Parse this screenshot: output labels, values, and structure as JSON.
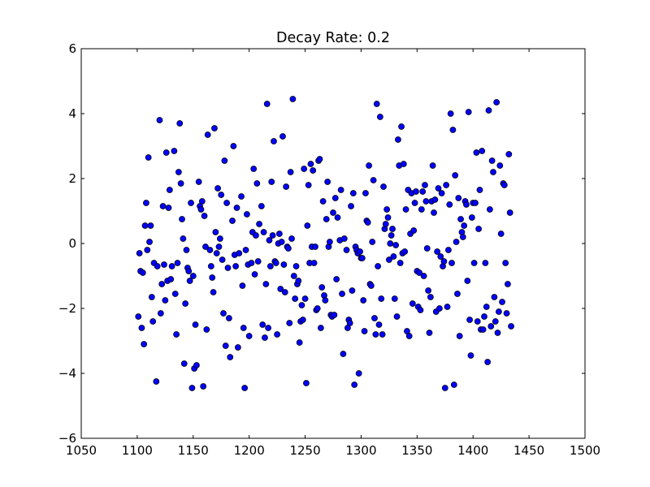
{
  "chart_data": {
    "type": "scatter",
    "title": "Decay Rate: 0.2",
    "xlabel": "",
    "ylabel": "",
    "xlim": [
      1050,
      1500
    ],
    "ylim": [
      -6,
      6
    ],
    "x_ticks": [
      1050,
      1100,
      1150,
      1200,
      1250,
      1300,
      1350,
      1400,
      1450,
      1500
    ],
    "x_tick_labels": [
      "1050",
      "1100",
      "1150",
      "1200",
      "1250",
      "1300",
      "1350",
      "1400",
      "1450",
      "1500"
    ],
    "y_ticks": [
      -6,
      -4,
      -2,
      0,
      2,
      4,
      6
    ],
    "y_tick_labels": [
      "−6",
      "−4",
      "−2",
      "0",
      "2",
      "4",
      "6"
    ],
    "grid": false,
    "marker_color": "#0000ff",
    "marker_edge_color": "#000000",
    "points": [
      [
        1101,
        -2.25
      ],
      [
        1102,
        -0.3
      ],
      [
        1103,
        -0.85
      ],
      [
        1104,
        -2.6
      ],
      [
        1105,
        -0.9
      ],
      [
        1106,
        -3.1
      ],
      [
        1107,
        0.55
      ],
      [
        1108,
        1.25
      ],
      [
        1109,
        -0.2
      ],
      [
        1110,
        2.65
      ],
      [
        1111,
        0.05
      ],
      [
        1112,
        0.55
      ],
      [
        1113,
        -1.65
      ],
      [
        1114,
        -2.4
      ],
      [
        1115,
        -0.6
      ],
      [
        1117,
        -4.25
      ],
      [
        1118,
        -0.7
      ],
      [
        1120,
        3.8
      ],
      [
        1121,
        -2.15
      ],
      [
        1122,
        -1.25
      ],
      [
        1123,
        1.15
      ],
      [
        1124,
        -0.65
      ],
      [
        1125,
        -1.75
      ],
      [
        1126,
        2.8
      ],
      [
        1127,
        -1.15
      ],
      [
        1128,
        1.1
      ],
      [
        1129,
        1.65
      ],
      [
        1130,
        -1.1
      ],
      [
        1131,
        -0.7
      ],
      [
        1133,
        2.85
      ],
      [
        1134,
        -1.55
      ],
      [
        1135,
        -2.8
      ],
      [
        1136,
        -0.6
      ],
      [
        1137,
        2.2
      ],
      [
        1138,
        3.7
      ],
      [
        1139,
        1.85
      ],
      [
        1140,
        0.75
      ],
      [
        1141,
        0.15
      ],
      [
        1142,
        -3.7
      ],
      [
        1143,
        -1.85
      ],
      [
        1144,
        -0.2
      ],
      [
        1145,
        -0.75
      ],
      [
        1146,
        -0.85
      ],
      [
        1147,
        -1.15
      ],
      [
        1148,
        1.25
      ],
      [
        1149,
        -4.45
      ],
      [
        1150,
        -1.0
      ],
      [
        1151,
        -3.85
      ],
      [
        1152,
        -2.5
      ],
      [
        1153,
        -3.75
      ],
      [
        1155,
        1.9
      ],
      [
        1156,
        1.15
      ],
      [
        1157,
        1.05
      ],
      [
        1158,
        1.3
      ],
      [
        1159,
        -4.4
      ],
      [
        1160,
        0.85
      ],
      [
        1161,
        -0.1
      ],
      [
        1162,
        -2.65
      ],
      [
        1163,
        3.35
      ],
      [
        1165,
        -0.2
      ],
      [
        1166,
        -0.7
      ],
      [
        1167,
        -1.05
      ],
      [
        1168,
        -1.5
      ],
      [
        1169,
        3.55
      ],
      [
        1170,
        0.35
      ],
      [
        1171,
        -0.3
      ],
      [
        1172,
        1.7
      ],
      [
        1173,
        -0.1
      ],
      [
        1174,
        0.15
      ],
      [
        1175,
        1.5
      ],
      [
        1176,
        -0.5
      ],
      [
        1177,
        -2.15
      ],
      [
        1178,
        2.55
      ],
      [
        1179,
        -3.15
      ],
      [
        1180,
        1.25
      ],
      [
        1181,
        -0.75
      ],
      [
        1182,
        -2.3
      ],
      [
        1183,
        -3.5
      ],
      [
        1185,
        0.7
      ],
      [
        1186,
        3.0
      ],
      [
        1187,
        -0.35
      ],
      [
        1188,
        -0.7
      ],
      [
        1189,
        1.1
      ],
      [
        1190,
        -3.2
      ],
      [
        1191,
        -0.3
      ],
      [
        1193,
        1.45
      ],
      [
        1194,
        -1.3
      ],
      [
        1195,
        -2.6
      ],
      [
        1196,
        -4.45
      ],
      [
        1197,
        -0.2
      ],
      [
        1198,
        0.9
      ],
      [
        1199,
        -0.65
      ],
      [
        1200,
        -2.85
      ],
      [
        1202,
        -0.6
      ],
      [
        1203,
        0.35
      ],
      [
        1204,
        2.3
      ],
      [
        1205,
        -0.95
      ],
      [
        1206,
        0.25
      ],
      [
        1207,
        1.85
      ],
      [
        1208,
        -0.55
      ],
      [
        1209,
        0.6
      ],
      [
        1211,
        1.15
      ],
      [
        1212,
        -2.5
      ],
      [
        1213,
        0.35
      ],
      [
        1214,
        -2.9
      ],
      [
        1215,
        -1.25
      ],
      [
        1216,
        4.3
      ],
      [
        1217,
        -2.6
      ],
      [
        1218,
        0.1
      ],
      [
        1219,
        -0.7
      ],
      [
        1220,
        1.9
      ],
      [
        1221,
        0.25
      ],
      [
        1222,
        3.15
      ],
      [
        1223,
        -0.55
      ],
      [
        1224,
        -0.6
      ],
      [
        1225,
        -2.8
      ],
      [
        1226,
        0.0
      ],
      [
        1227,
        0.3
      ],
      [
        1228,
        -1.4
      ],
      [
        1229,
        0.05
      ],
      [
        1230,
        3.3
      ],
      [
        1231,
        -0.65
      ],
      [
        1232,
        -1.5
      ],
      [
        1233,
        1.75
      ],
      [
        1234,
        -0.1
      ],
      [
        1235,
        -0.15
      ],
      [
        1236,
        -2.45
      ],
      [
        1237,
        2.2
      ],
      [
        1238,
        0.15
      ],
      [
        1239,
        4.45
      ],
      [
        1240,
        -1.0
      ],
      [
        1241,
        -1.7
      ],
      [
        1242,
        -0.7
      ],
      [
        1243,
        -1.25
      ],
      [
        1244,
        -1.15
      ],
      [
        1245,
        -3.05
      ],
      [
        1246,
        -2.4
      ],
      [
        1247,
        -1.9
      ],
      [
        1248,
        -2.35
      ],
      [
        1249,
        2.3
      ],
      [
        1250,
        -1.7
      ],
      [
        1251,
        -4.3
      ],
      [
        1252,
        0.55
      ],
      [
        1253,
        1.8
      ],
      [
        1254,
        -0.6
      ],
      [
        1255,
        2.45
      ],
      [
        1256,
        -0.1
      ],
      [
        1257,
        2.25
      ],
      [
        1258,
        -0.6
      ],
      [
        1259,
        -0.1
      ],
      [
        1260,
        -2.05
      ],
      [
        1261,
        -2.0
      ],
      [
        1262,
        2.55
      ],
      [
        1263,
        2.6
      ],
      [
        1264,
        -2.6
      ],
      [
        1265,
        -1.35
      ],
      [
        1266,
        1.3
      ],
      [
        1267,
        -1.6
      ],
      [
        1268,
        -1.75
      ],
      [
        1269,
        0.75
      ],
      [
        1270,
        1.9
      ],
      [
        1271,
        -0.1
      ],
      [
        1272,
        0.05
      ],
      [
        1273,
        -2.2
      ],
      [
        1274,
        -2.25
      ],
      [
        1275,
        0.95
      ],
      [
        1276,
        -2.2
      ],
      [
        1277,
        1.4
      ],
      [
        1278,
        -1.1
      ],
      [
        1279,
        0.8
      ],
      [
        1281,
        0.1
      ],
      [
        1282,
        1.65
      ],
      [
        1283,
        -1.55
      ],
      [
        1284,
        -3.4
      ],
      [
        1285,
        0.15
      ],
      [
        1287,
        -0.2
      ],
      [
        1288,
        -2.6
      ],
      [
        1289,
        -2.35
      ],
      [
        1290,
        -2.45
      ],
      [
        1291,
        1.15
      ],
      [
        1292,
        -1.45
      ],
      [
        1293,
        1.55
      ],
      [
        1294,
        -4.35
      ],
      [
        1295,
        -0.1
      ],
      [
        1296,
        -0.2
      ],
      [
        1297,
        -0.3
      ],
      [
        1298,
        -4.0
      ],
      [
        1299,
        -0.25
      ],
      [
        1300,
        -0.45
      ],
      [
        1301,
        -0.45
      ],
      [
        1302,
        -1.75
      ],
      [
        1303,
        -2.7
      ],
      [
        1304,
        1.55
      ],
      [
        1305,
        0.7
      ],
      [
        1306,
        0.65
      ],
      [
        1307,
        2.4
      ],
      [
        1308,
        -1.25
      ],
      [
        1309,
        -1.3
      ],
      [
        1310,
        0.05
      ],
      [
        1311,
        1.95
      ],
      [
        1312,
        -2.3
      ],
      [
        1313,
        -2.8
      ],
      [
        1314,
        4.3
      ],
      [
        1315,
        -0.7
      ],
      [
        1316,
        -2.5
      ],
      [
        1317,
        3.9
      ],
      [
        1318,
        -1.7
      ],
      [
        1319,
        -2.8
      ],
      [
        1320,
        1.75
      ],
      [
        1321,
        0.45
      ],
      [
        1322,
        0.6
      ],
      [
        1323,
        1.05
      ],
      [
        1324,
        0.8
      ],
      [
        1325,
        -0.5
      ],
      [
        1326,
        0.0
      ],
      [
        1327,
        0.25
      ],
      [
        1328,
        0.45
      ],
      [
        1329,
        -0.4
      ],
      [
        1330,
        -1.7
      ],
      [
        1331,
        -0.05
      ],
      [
        1332,
        -2.25
      ],
      [
        1333,
        3.2
      ],
      [
        1334,
        2.4
      ],
      [
        1335,
        -0.6
      ],
      [
        1336,
        3.6
      ],
      [
        1337,
        -0.3
      ],
      [
        1338,
        2.45
      ],
      [
        1339,
        -0.25
      ],
      [
        1340,
        1.05
      ],
      [
        1341,
        -2.7
      ],
      [
        1342,
        1.65
      ],
      [
        1343,
        -2.85
      ],
      [
        1344,
        0.3
      ],
      [
        1345,
        1.55
      ],
      [
        1346,
        -1.85
      ],
      [
        1347,
        0.4
      ],
      [
        1348,
        1.25
      ],
      [
        1349,
        1.6
      ],
      [
        1350,
        -0.85
      ],
      [
        1351,
        -1.95
      ],
      [
        1352,
        -0.9
      ],
      [
        1353,
        -2.05
      ],
      [
        1354,
        1.05
      ],
      [
        1355,
        1.6
      ],
      [
        1356,
        -1.0
      ],
      [
        1357,
        1.8
      ],
      [
        1358,
        1.3
      ],
      [
        1359,
        -0.15
      ],
      [
        1360,
        -1.45
      ],
      [
        1361,
        -2.75
      ],
      [
        1362,
        -1.65
      ],
      [
        1363,
        1.3
      ],
      [
        1364,
        2.4
      ],
      [
        1365,
        0.95
      ],
      [
        1366,
        1.35
      ],
      [
        1367,
        -2.1
      ],
      [
        1368,
        -0.25
      ],
      [
        1369,
        1.7
      ],
      [
        1370,
        -2.0
      ],
      [
        1371,
        -0.4
      ],
      [
        1372,
        1.55
      ],
      [
        1373,
        -0.7
      ],
      [
        1374,
        -0.55
      ],
      [
        1375,
        -4.45
      ],
      [
        1376,
        1.8
      ],
      [
        1377,
        -1.95
      ],
      [
        1378,
        -0.2
      ],
      [
        1379,
        1.2
      ],
      [
        1380,
        4.0
      ],
      [
        1381,
        -0.6
      ],
      [
        1382,
        3.5
      ],
      [
        1383,
        -4.35
      ],
      [
        1384,
        2.1
      ],
      [
        1385,
        0.05
      ],
      [
        1386,
        -1.55
      ],
      [
        1387,
        1.4
      ],
      [
        1388,
        -2.85
      ],
      [
        1389,
        0.75
      ],
      [
        1390,
        0.35
      ],
      [
        1391,
        0.2
      ],
      [
        1392,
        0.55
      ],
      [
        1393,
        1.3
      ],
      [
        1394,
        1.2
      ],
      [
        1395,
        -1.15
      ],
      [
        1396,
        4.05
      ],
      [
        1397,
        -2.35
      ],
      [
        1398,
        -3.45
      ],
      [
        1399,
        0.8
      ],
      [
        1400,
        1.25
      ],
      [
        1401,
        -0.6
      ],
      [
        1402,
        1.25
      ],
      [
        1403,
        2.8
      ],
      [
        1404,
        -2.4
      ],
      [
        1405,
        0.45
      ],
      [
        1406,
        1.65
      ],
      [
        1407,
        -2.65
      ],
      [
        1408,
        2.85
      ],
      [
        1409,
        -2.65
      ],
      [
        1410,
        -2.25
      ],
      [
        1411,
        -0.6
      ],
      [
        1412,
        -1.95
      ],
      [
        1413,
        -3.65
      ],
      [
        1414,
        4.1
      ],
      [
        1415,
        1.05
      ],
      [
        1416,
        -2.55
      ],
      [
        1417,
        2.55
      ],
      [
        1418,
        2.2
      ],
      [
        1419,
        -1.65
      ],
      [
        1420,
        -2.4
      ],
      [
        1421,
        4.35
      ],
      [
        1422,
        -2.75
      ],
      [
        1423,
        -2.1
      ],
      [
        1424,
        2.4
      ],
      [
        1425,
        0.3
      ],
      [
        1426,
        -1.8
      ],
      [
        1427,
        1.85
      ],
      [
        1428,
        1.8
      ],
      [
        1429,
        -0.6
      ],
      [
        1430,
        -2.15
      ],
      [
        1431,
        -1.25
      ],
      [
        1432,
        2.75
      ],
      [
        1433,
        0.95
      ],
      [
        1434,
        -2.55
      ]
    ]
  }
}
